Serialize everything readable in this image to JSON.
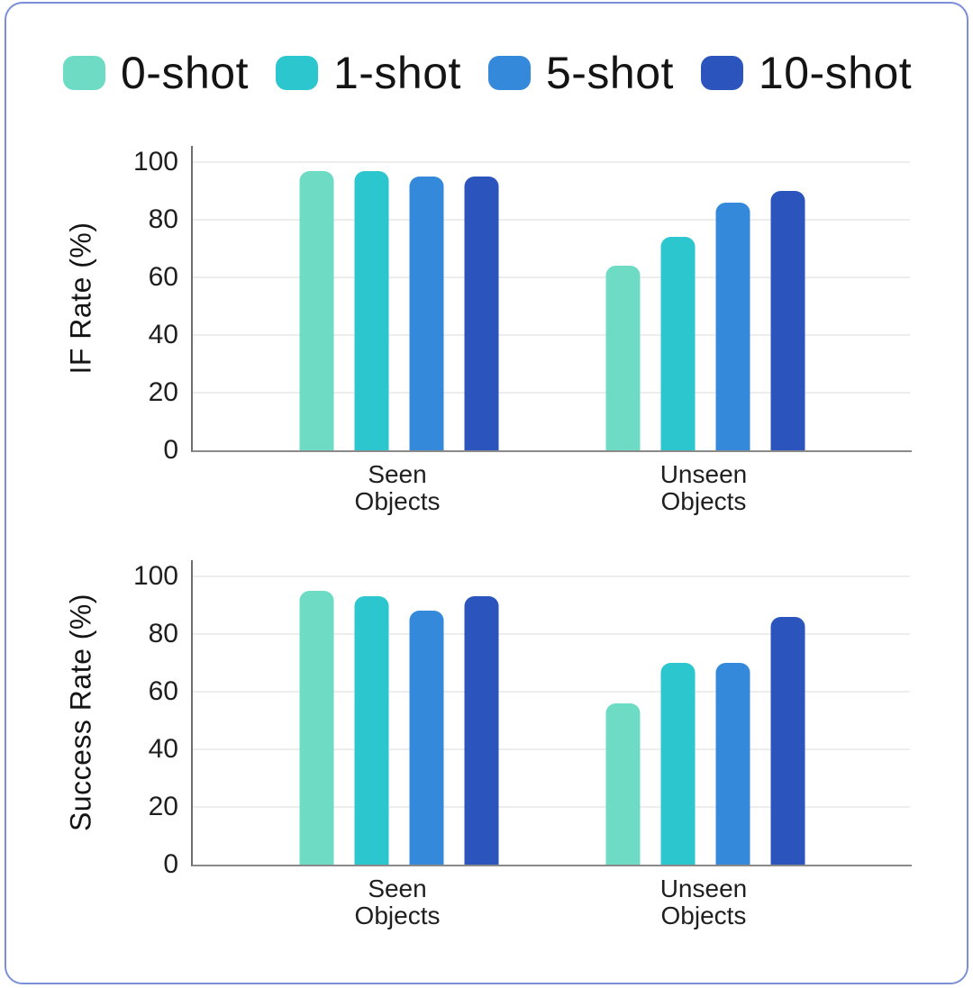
{
  "frame": {
    "border_color": "#7b8fd8"
  },
  "legend": {
    "items": [
      {
        "label": "0-shot",
        "color": "#6edcc4"
      },
      {
        "label": "1-shot",
        "color": "#2bc6ce"
      },
      {
        "label": "5-shot",
        "color": "#3489db"
      },
      {
        "label": "10-shot",
        "color": "#2b55bd"
      }
    ]
  },
  "chart_data": [
    {
      "type": "bar",
      "title": "",
      "ylabel": "IF Rate (%)",
      "xlabel": "",
      "ylim": [
        0,
        100
      ],
      "yticks": [
        0,
        20,
        40,
        60,
        80,
        100
      ],
      "grid": true,
      "legend_position": "top-left",
      "categories": [
        "Seen Objects",
        "Unseen Objects"
      ],
      "group_centers_pct": [
        28.7,
        71.3
      ],
      "series": [
        {
          "name": "0-shot",
          "color": "#6edcc4",
          "values": [
            97,
            64
          ]
        },
        {
          "name": "1-shot",
          "color": "#2bc6ce",
          "values": [
            97,
            74
          ]
        },
        {
          "name": "5-shot",
          "color": "#3489db",
          "values": [
            95,
            86
          ]
        },
        {
          "name": "10-shot",
          "color": "#2b55bd",
          "values": [
            95,
            90
          ]
        }
      ]
    },
    {
      "type": "bar",
      "title": "",
      "ylabel": "Success Rate (%)",
      "xlabel": "",
      "ylim": [
        0,
        100
      ],
      "yticks": [
        0,
        20,
        40,
        60,
        80,
        100
      ],
      "grid": true,
      "legend_position": "top-left",
      "categories": [
        "Seen Objects",
        "Unseen Objects"
      ],
      "group_centers_pct": [
        28.7,
        71.3
      ],
      "series": [
        {
          "name": "0-shot",
          "color": "#6edcc4",
          "values": [
            95,
            56
          ]
        },
        {
          "name": "1-shot",
          "color": "#2bc6ce",
          "values": [
            93,
            70
          ]
        },
        {
          "name": "5-shot",
          "color": "#3489db",
          "values": [
            88,
            70
          ]
        },
        {
          "name": "10-shot",
          "color": "#2b55bd",
          "values": [
            93,
            86
          ]
        }
      ]
    }
  ]
}
